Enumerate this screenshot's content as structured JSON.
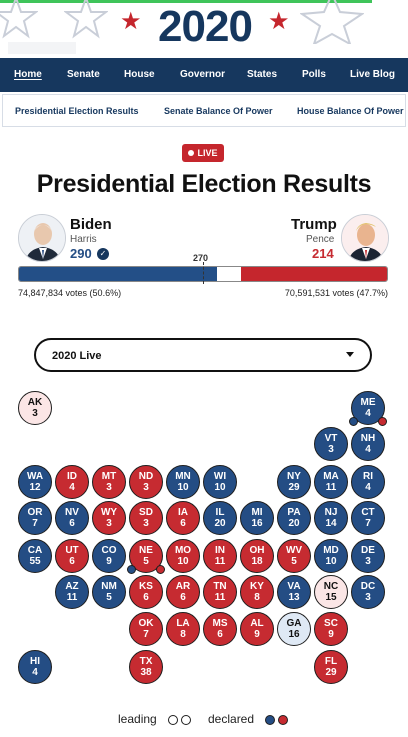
{
  "banner": {
    "year": "2020"
  },
  "colors": {
    "dem": "#244d84",
    "rep": "#c62b31",
    "navy": "#16375e",
    "lean_dem": "#dfe9f5",
    "lean_rep": "#fbe6e6"
  },
  "main_nav": {
    "items": [
      {
        "label": "Home",
        "active": true
      },
      {
        "label": "Senate"
      },
      {
        "label": "House"
      },
      {
        "label": "Governor"
      },
      {
        "label": "States"
      },
      {
        "label": "Polls"
      },
      {
        "label": "Live Blog"
      }
    ]
  },
  "sub_nav": {
    "items": [
      {
        "label": "Presidential Election Results"
      },
      {
        "label": "Senate Balance Of Power"
      },
      {
        "label": "House Balance Of Power"
      }
    ]
  },
  "live_badge": "LIVE",
  "title": "Presidential Election Results",
  "candidates": {
    "dem": {
      "name": "Biden",
      "running_mate": "Harris",
      "electoral_votes": "290",
      "electoral_votes_num": 290,
      "winner_icon": "check-icon",
      "votes": "74,847,834 votes (50.6%)"
    },
    "rep": {
      "name": "Trump",
      "running_mate": "Pence",
      "electoral_votes": "214",
      "electoral_votes_num": 214,
      "votes": "70,591,531 votes (47.7%)"
    }
  },
  "threshold": {
    "label": "270",
    "value": 270,
    "total": 538
  },
  "dropdown": {
    "selected": "2020 Live",
    "icon": "caret-down-icon"
  },
  "states": [
    {
      "abbr": "AK",
      "ev": "3",
      "status": "lean-rep"
    },
    {
      "abbr": "ME",
      "ev": "4",
      "status": "dem",
      "split": [
        "dem",
        "rep"
      ]
    },
    {
      "abbr": "VT",
      "ev": "3",
      "status": "dem"
    },
    {
      "abbr": "NH",
      "ev": "4",
      "status": "dem"
    },
    {
      "abbr": "WA",
      "ev": "12",
      "status": "dem"
    },
    {
      "abbr": "ID",
      "ev": "4",
      "status": "rep"
    },
    {
      "abbr": "MT",
      "ev": "3",
      "status": "rep"
    },
    {
      "abbr": "ND",
      "ev": "3",
      "status": "rep"
    },
    {
      "abbr": "MN",
      "ev": "10",
      "status": "dem"
    },
    {
      "abbr": "WI",
      "ev": "10",
      "status": "dem"
    },
    {
      "abbr": "NY",
      "ev": "29",
      "status": "dem"
    },
    {
      "abbr": "MA",
      "ev": "11",
      "status": "dem"
    },
    {
      "abbr": "RI",
      "ev": "4",
      "status": "dem"
    },
    {
      "abbr": "OR",
      "ev": "7",
      "status": "dem"
    },
    {
      "abbr": "NV",
      "ev": "6",
      "status": "dem"
    },
    {
      "abbr": "WY",
      "ev": "3",
      "status": "rep"
    },
    {
      "abbr": "SD",
      "ev": "3",
      "status": "rep"
    },
    {
      "abbr": "IA",
      "ev": "6",
      "status": "rep"
    },
    {
      "abbr": "IL",
      "ev": "20",
      "status": "dem"
    },
    {
      "abbr": "MI",
      "ev": "16",
      "status": "dem"
    },
    {
      "abbr": "PA",
      "ev": "20",
      "status": "dem"
    },
    {
      "abbr": "NJ",
      "ev": "14",
      "status": "dem"
    },
    {
      "abbr": "CT",
      "ev": "7",
      "status": "dem"
    },
    {
      "abbr": "CA",
      "ev": "55",
      "status": "dem"
    },
    {
      "abbr": "UT",
      "ev": "6",
      "status": "rep"
    },
    {
      "abbr": "CO",
      "ev": "9",
      "status": "dem"
    },
    {
      "abbr": "NE",
      "ev": "5",
      "status": "rep",
      "split": [
        "dem",
        "rep"
      ]
    },
    {
      "abbr": "MO",
      "ev": "10",
      "status": "rep"
    },
    {
      "abbr": "IN",
      "ev": "11",
      "status": "rep"
    },
    {
      "abbr": "OH",
      "ev": "18",
      "status": "rep"
    },
    {
      "abbr": "WV",
      "ev": "5",
      "status": "rep"
    },
    {
      "abbr": "MD",
      "ev": "10",
      "status": "dem"
    },
    {
      "abbr": "DE",
      "ev": "3",
      "status": "dem"
    },
    {
      "abbr": "AZ",
      "ev": "11",
      "status": "dem"
    },
    {
      "abbr": "NM",
      "ev": "5",
      "status": "dem"
    },
    {
      "abbr": "KS",
      "ev": "6",
      "status": "rep"
    },
    {
      "abbr": "AR",
      "ev": "6",
      "status": "rep"
    },
    {
      "abbr": "TN",
      "ev": "11",
      "status": "rep"
    },
    {
      "abbr": "KY",
      "ev": "8",
      "status": "rep"
    },
    {
      "abbr": "VA",
      "ev": "13",
      "status": "dem"
    },
    {
      "abbr": "NC",
      "ev": "15",
      "status": "lean-rep"
    },
    {
      "abbr": "DC",
      "ev": "3",
      "status": "dem"
    },
    {
      "abbr": "OK",
      "ev": "7",
      "status": "rep"
    },
    {
      "abbr": "LA",
      "ev": "8",
      "status": "rep"
    },
    {
      "abbr": "MS",
      "ev": "6",
      "status": "rep"
    },
    {
      "abbr": "AL",
      "ev": "9",
      "status": "rep"
    },
    {
      "abbr": "GA",
      "ev": "16",
      "status": "lean-dem"
    },
    {
      "abbr": "SC",
      "ev": "9",
      "status": "rep"
    },
    {
      "abbr": "HI",
      "ev": "4",
      "status": "dem"
    },
    {
      "abbr": "TX",
      "ev": "38",
      "status": "rep"
    },
    {
      "abbr": "FL",
      "ev": "29",
      "status": "rep"
    }
  ],
  "legend": {
    "leading": "leading",
    "declared": "declared"
  }
}
